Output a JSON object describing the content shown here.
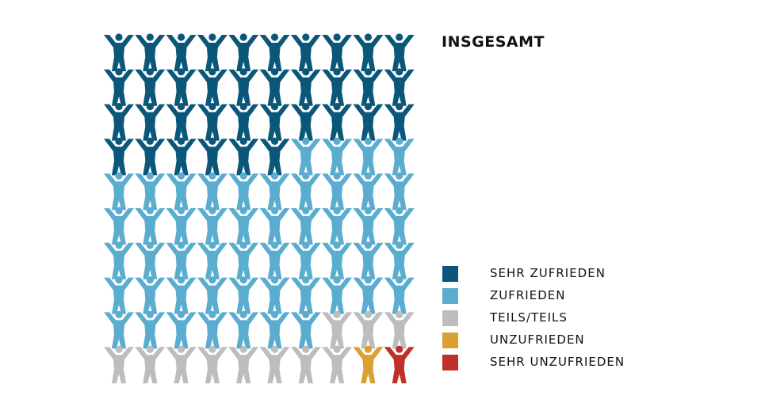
{
  "chart_data": {
    "type": "pictogram",
    "title": "INSGESAMT",
    "total": 100,
    "grid": {
      "columns": 10,
      "rows": 10
    },
    "categories": [
      {
        "label": "SEHR ZUFRIEDEN",
        "count": 36,
        "color": "#0b5779"
      },
      {
        "label": "ZUFRIEDEN",
        "count": 51,
        "color": "#5badd0"
      },
      {
        "label": "TEILS/TEILS",
        "count": 11,
        "color": "#bdbdbd"
      },
      {
        "label": "UNZUFRIEDEN",
        "count": 1,
        "color": "#dba032"
      },
      {
        "label": "SEHR UNZUFRIEDEN",
        "count": 1,
        "color": "#c0302b"
      }
    ],
    "icon": "person-arms-raised-icon"
  }
}
